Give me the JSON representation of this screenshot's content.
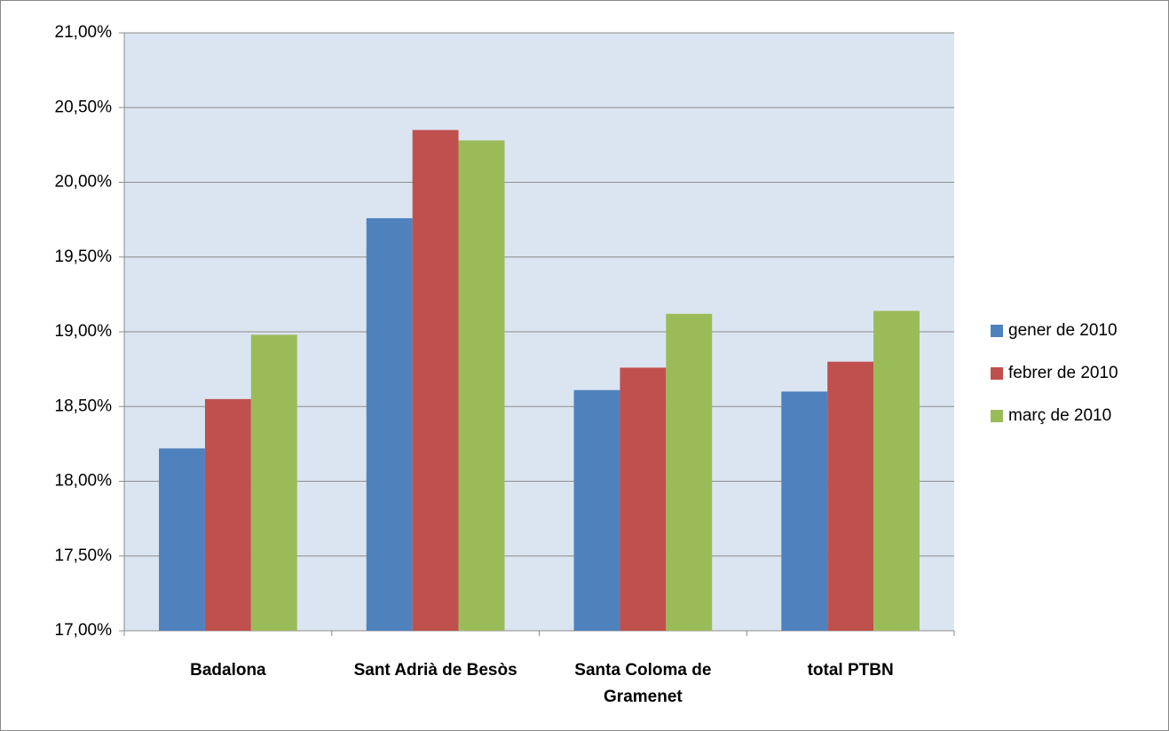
{
  "chart_data": {
    "type": "bar",
    "categories": [
      "Badalona",
      "Sant Adrià de Besòs",
      "Santa Coloma de Gramenet",
      "total PTBN"
    ],
    "series": [
      {
        "name": "gener de 2010",
        "color": "#4f81bd",
        "values": [
          18.22,
          19.76,
          18.61,
          18.6
        ]
      },
      {
        "name": "febrer de 2010",
        "color": "#c0504d",
        "values": [
          18.55,
          20.35,
          18.76,
          18.8
        ]
      },
      {
        "name": "març de 2010",
        "color": "#9bbb59",
        "values": [
          18.98,
          20.28,
          19.12,
          19.14
        ]
      }
    ],
    "ylim": [
      17,
      21
    ],
    "yticks": [
      {
        "value": 17,
        "label": "17,00%"
      },
      {
        "value": 17.5,
        "label": "17,50%"
      },
      {
        "value": 18,
        "label": "18,00%"
      },
      {
        "value": 18.5,
        "label": "18,50%"
      },
      {
        "value": 19,
        "label": "19,00%"
      },
      {
        "value": 19.5,
        "label": "19,50%"
      },
      {
        "value": 20,
        "label": "20,00%"
      },
      {
        "value": 20.5,
        "label": "20,50%"
      },
      {
        "value": 21,
        "label": "21,00%"
      }
    ],
    "grid": true,
    "legend": "right"
  }
}
